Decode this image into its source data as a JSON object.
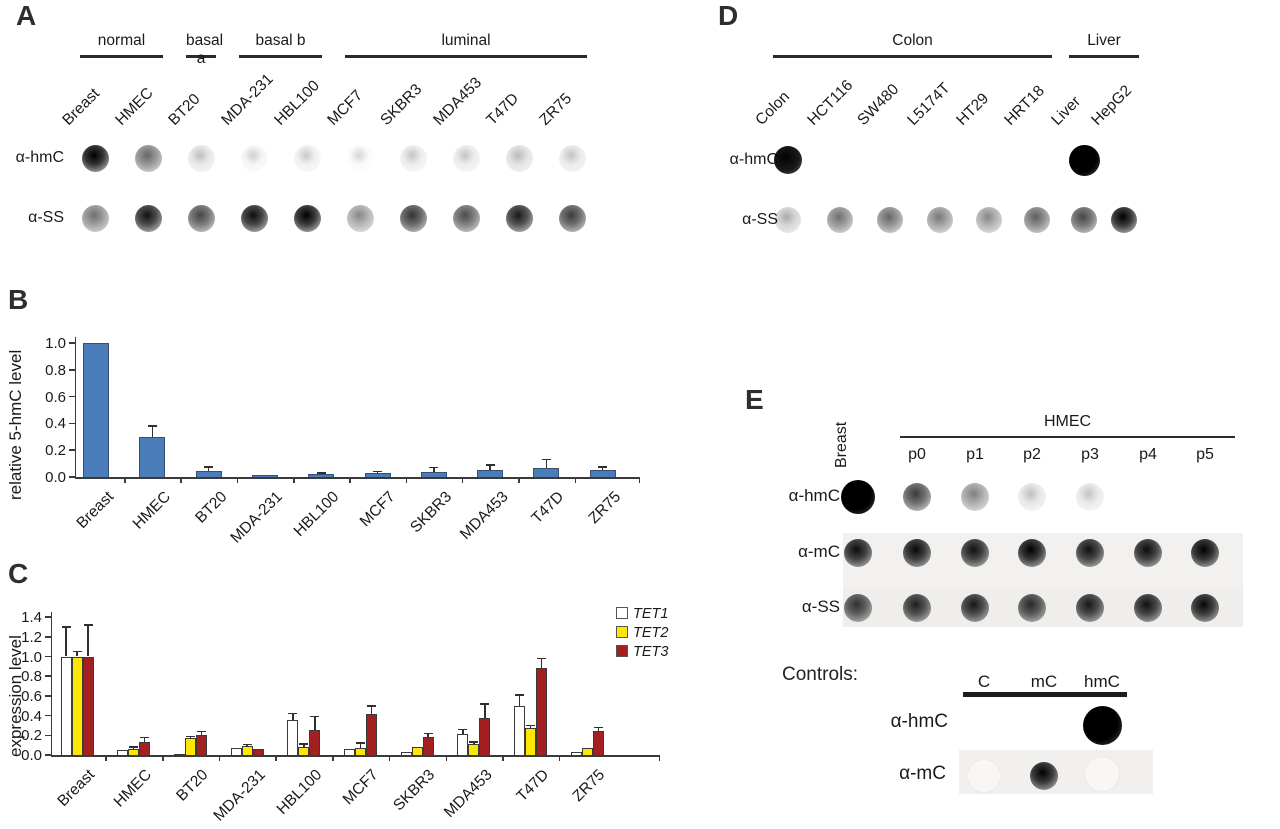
{
  "panels": {
    "A": {
      "label": "A",
      "groups": [
        {
          "label": "normal",
          "from": 0,
          "to": 1
        },
        {
          "label": "basal a",
          "from": 2,
          "to": 2
        },
        {
          "label": "basal b",
          "from": 3,
          "to": 4
        },
        {
          "label": "luminal",
          "from": 5,
          "to": 9
        }
      ],
      "columns": [
        "Breast",
        "HMEC",
        "BT20",
        "MDA-231",
        "HBL100",
        "MCF7",
        "SKBR3",
        "MDA453",
        "T47D",
        "ZR75"
      ],
      "rows": [
        {
          "label": "α-hmC",
          "dots": [
            0.88,
            0.45,
            0.1,
            0.04,
            0.06,
            0.02,
            0.08,
            0.08,
            0.12,
            0.09
          ]
        },
        {
          "label": "α-SS",
          "dots": [
            0.42,
            0.78,
            0.58,
            0.8,
            0.85,
            0.32,
            0.65,
            0.55,
            0.75,
            0.62
          ]
        }
      ]
    },
    "B": {
      "label": "B"
    },
    "C": {
      "label": "C"
    },
    "D": {
      "label": "D",
      "groups": [
        {
          "label": "Colon",
          "from": 0,
          "to": 5
        },
        {
          "label": "Liver",
          "from": 6,
          "to": 7
        }
      ],
      "columns": [
        "Colon",
        "HCT116",
        "SW480",
        "L5174T",
        "HT29",
        "HRT18",
        "Liver",
        "HepG2"
      ],
      "rows": [
        {
          "label": "α-hmC",
          "dots": [
            0.9,
            0,
            0,
            0,
            0,
            0,
            1.0,
            0
          ]
        },
        {
          "label": "α-SS",
          "dots": [
            0.18,
            0.42,
            0.45,
            0.38,
            0.32,
            0.48,
            0.58,
            0.85
          ]
        }
      ]
    },
    "E": {
      "label": "E",
      "breast_label": "Breast",
      "group_label": "HMEC",
      "passage_labels": [
        "p0",
        "p1",
        "p2",
        "p3",
        "p4",
        "p5"
      ],
      "rows": [
        {
          "label": "α-hmC",
          "dots": [
            1.0,
            0.62,
            0.35,
            0.1,
            0.09,
            0,
            0
          ]
        },
        {
          "label": "α-mC",
          "dots": [
            0.8,
            0.82,
            0.78,
            0.85,
            0.78,
            0.8,
            0.86
          ]
        },
        {
          "label": "α-SS",
          "dots": [
            0.65,
            0.72,
            0.75,
            0.68,
            0.75,
            0.78,
            0.82
          ]
        }
      ],
      "controls": {
        "label": "Controls:",
        "columns": [
          "C",
          "mC",
          "hmC"
        ],
        "rows": [
          {
            "label": "α-hmC",
            "dots": [
              0,
              0,
              1.0
            ]
          },
          {
            "label": "α-mC",
            "dots": [
              0.04,
              0.85,
              0.05
            ]
          }
        ]
      }
    }
  },
  "chart_data": [
    {
      "panel": "B",
      "type": "bar",
      "title": "",
      "ylabel": "relative 5-hmC level",
      "xlabel": "",
      "categories": [
        "Breast",
        "HMEC",
        "BT20",
        "MDA-231",
        "HBL100",
        "MCF7",
        "SKBR3",
        "MDA453",
        "T47D",
        "ZR75"
      ],
      "values": [
        1.0,
        0.3,
        0.045,
        0.015,
        0.02,
        0.03,
        0.04,
        0.05,
        0.065,
        0.05
      ],
      "errors": [
        0,
        0.08,
        0.03,
        0,
        0.01,
        0.01,
        0.03,
        0.04,
        0.065,
        0.025
      ],
      "ylim": [
        0,
        1.0
      ],
      "ytick_step": 0.2,
      "grid": false,
      "bar_color": "#4a7cba",
      "bar_border_color": "#38506b"
    },
    {
      "panel": "C",
      "type": "bar",
      "title": "",
      "ylabel": "expression level",
      "xlabel": "",
      "categories": [
        "Breast",
        "HMEC",
        "BT20",
        "MDA-231",
        "HBL100",
        "MCF7",
        "SKBR3",
        "MDA453",
        "T47D",
        "ZR75"
      ],
      "series": [
        {
          "name": "TET1",
          "color": "#ffffff",
          "values": [
            1.0,
            0.05,
            0.01,
            0.07,
            0.36,
            0.06,
            0.03,
            0.21,
            0.5,
            0.03
          ],
          "errors": [
            0.3,
            0.01,
            0,
            0.01,
            0.06,
            0.01,
            0.01,
            0.05,
            0.11,
            0.01
          ]
        },
        {
          "name": "TET2",
          "color": "#ffe600",
          "values": [
            1.0,
            0.06,
            0.17,
            0.09,
            0.08,
            0.07,
            0.08,
            0.11,
            0.27,
            0.07
          ],
          "errors": [
            0.05,
            0.02,
            0.02,
            0.015,
            0.03,
            0.05,
            0.01,
            0.02,
            0.03,
            0.01
          ]
        },
        {
          "name": "TET3",
          "color": "#a32020",
          "values": [
            1.0,
            0.13,
            0.2,
            0.06,
            0.25,
            0.42,
            0.18,
            0.38,
            0.88,
            0.24
          ],
          "errors": [
            0.32,
            0.05,
            0.04,
            0.01,
            0.14,
            0.08,
            0.04,
            0.14,
            0.1,
            0.04
          ]
        }
      ],
      "ylim": [
        0,
        1.4
      ],
      "ytick_step": 0.2,
      "grid": false,
      "legend_position": "top-right"
    }
  ]
}
